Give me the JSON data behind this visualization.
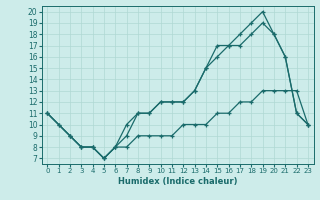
{
  "xlabel": "Humidex (Indice chaleur)",
  "bg_color": "#cdecea",
  "line_color": "#1a6b6b",
  "grid_color": "#b0d8d4",
  "xlim": [
    -0.5,
    23.5
  ],
  "ylim": [
    6.5,
    20.5
  ],
  "yticks": [
    7,
    8,
    9,
    10,
    11,
    12,
    13,
    14,
    15,
    16,
    17,
    18,
    19,
    20
  ],
  "xticks": [
    0,
    1,
    2,
    3,
    4,
    5,
    6,
    7,
    8,
    9,
    10,
    11,
    12,
    13,
    14,
    15,
    16,
    17,
    18,
    19,
    20,
    21,
    22,
    23
  ],
  "line1_x": [
    0,
    1,
    2,
    3,
    4,
    5,
    6,
    7,
    8,
    9,
    10,
    11,
    12,
    13,
    14,
    15,
    16,
    17,
    18,
    19,
    20,
    21,
    22,
    23
  ],
  "line1_y": [
    11,
    10,
    9,
    8,
    8,
    7,
    8,
    10,
    11,
    11,
    12,
    12,
    12,
    13,
    15,
    17,
    17,
    18,
    19,
    20,
    18,
    16,
    11,
    10
  ],
  "line2_x": [
    0,
    1,
    2,
    3,
    4,
    5,
    6,
    7,
    8,
    9,
    10,
    11,
    12,
    13,
    14,
    15,
    16,
    17,
    18,
    19,
    20,
    21,
    22,
    23
  ],
  "line2_y": [
    11,
    10,
    9,
    8,
    8,
    7,
    8,
    9,
    11,
    11,
    12,
    12,
    12,
    13,
    15,
    16,
    17,
    17,
    18,
    19,
    18,
    16,
    11,
    10
  ],
  "line3_x": [
    0,
    2,
    3,
    4,
    5,
    6,
    7,
    8,
    9,
    10,
    11,
    12,
    13,
    14,
    15,
    16,
    17,
    18,
    19,
    20,
    21,
    22,
    23
  ],
  "line3_y": [
    11,
    9,
    8,
    8,
    7,
    8,
    8,
    9,
    9,
    9,
    9,
    10,
    10,
    10,
    11,
    11,
    12,
    12,
    13,
    13,
    13,
    13,
    10
  ]
}
